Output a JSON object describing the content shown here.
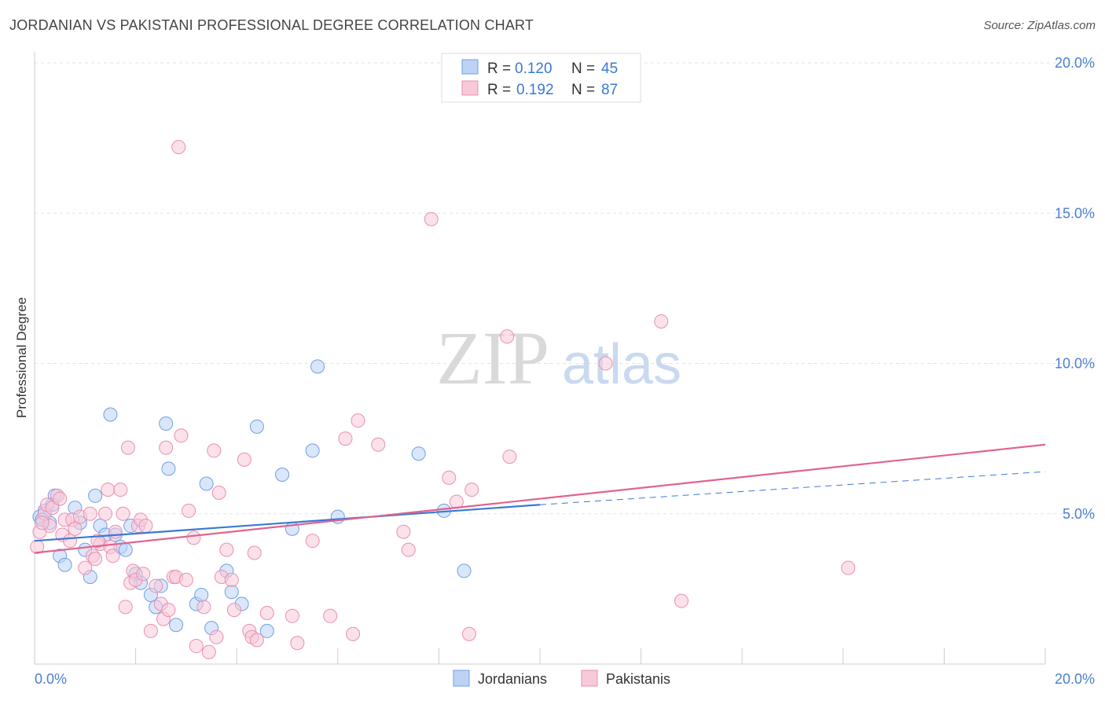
{
  "title": "JORDANIAN VS PAKISTANI PROFESSIONAL DEGREE CORRELATION CHART",
  "source": "Source: ZipAtlas.com",
  "watermark": {
    "zip": "ZIP",
    "atlas": "atlas"
  },
  "legend": {
    "r_label": "R =",
    "n_label": "N =",
    "rows": [
      {
        "r": "0.120",
        "n": "45",
        "color": "#6f9ee6",
        "fill": "#bcd3f5"
      },
      {
        "r": "0.192",
        "n": "87",
        "color": "#e98fb0",
        "fill": "#f8c9d9"
      }
    ]
  },
  "chart_data": {
    "type": "scatter",
    "title": "JORDANIAN VS PAKISTANI PROFESSIONAL DEGREE CORRELATION CHART",
    "xlabel": "",
    "ylabel": "Professional Degree",
    "xlim": [
      0,
      20
    ],
    "ylim": [
      0,
      20
    ],
    "x_tick_labels": [
      "0.0%",
      "20.0%"
    ],
    "y_ticks": [
      {
        "value": 5,
        "label": "5.0%"
      },
      {
        "value": 10,
        "label": "10.0%"
      },
      {
        "value": 15,
        "label": "15.0%"
      },
      {
        "value": 20,
        "label": "20.0%"
      }
    ],
    "grid": true,
    "series": [
      {
        "name": "Jordanians",
        "color": "#6f9ee6",
        "fill": "#bcd3f5",
        "trend": {
          "x0": 0,
          "y0": 4.1,
          "x1": 10,
          "y1": 5.3,
          "dash_to": 20,
          "dash_y": 6.4,
          "color": "#3b78d4"
        },
        "points": [
          [
            0.1,
            4.9
          ],
          [
            0.2,
            5.1
          ],
          [
            0.3,
            4.7
          ],
          [
            0.4,
            5.6
          ],
          [
            0.5,
            3.6
          ],
          [
            0.6,
            3.3
          ],
          [
            0.8,
            5.2
          ],
          [
            0.9,
            4.7
          ],
          [
            1.0,
            3.8
          ],
          [
            1.1,
            2.9
          ],
          [
            1.2,
            5.6
          ],
          [
            1.3,
            4.6
          ],
          [
            1.4,
            4.3
          ],
          [
            1.5,
            8.3
          ],
          [
            1.6,
            4.3
          ],
          [
            1.7,
            3.9
          ],
          [
            1.8,
            3.8
          ],
          [
            1.9,
            4.6
          ],
          [
            2.0,
            3.0
          ],
          [
            2.1,
            2.7
          ],
          [
            2.3,
            2.3
          ],
          [
            2.4,
            1.9
          ],
          [
            2.5,
            2.6
          ],
          [
            2.6,
            8.0
          ],
          [
            2.65,
            6.5
          ],
          [
            2.8,
            1.3
          ],
          [
            3.2,
            2.0
          ],
          [
            3.3,
            2.3
          ],
          [
            3.4,
            6.0
          ],
          [
            3.5,
            1.2
          ],
          [
            3.8,
            3.1
          ],
          [
            3.9,
            2.4
          ],
          [
            4.1,
            2.0
          ],
          [
            4.4,
            7.9
          ],
          [
            4.6,
            1.1
          ],
          [
            4.9,
            6.3
          ],
          [
            5.1,
            4.5
          ],
          [
            5.5,
            7.1
          ],
          [
            5.6,
            9.9
          ],
          [
            6.0,
            4.9
          ],
          [
            7.6,
            7.0
          ],
          [
            8.1,
            5.1
          ],
          [
            8.5,
            3.1
          ],
          [
            0.15,
            4.8
          ],
          [
            0.35,
            5.3
          ]
        ]
      },
      {
        "name": "Pakistanis",
        "color": "#e98fb0",
        "fill": "#f8c9d9",
        "trend": {
          "x0": 0,
          "y0": 3.7,
          "x1": 20,
          "y1": 7.3,
          "color": "#e0648f"
        },
        "points": [
          [
            0.05,
            3.9
          ],
          [
            0.1,
            4.4
          ],
          [
            0.2,
            5.0
          ],
          [
            0.25,
            5.3
          ],
          [
            0.3,
            4.6
          ],
          [
            0.35,
            5.2
          ],
          [
            0.45,
            5.6
          ],
          [
            0.55,
            4.3
          ],
          [
            0.6,
            4.8
          ],
          [
            0.7,
            4.1
          ],
          [
            0.75,
            4.8
          ],
          [
            0.8,
            4.5
          ],
          [
            0.9,
            4.9
          ],
          [
            1.0,
            3.2
          ],
          [
            1.1,
            5.0
          ],
          [
            1.15,
            3.6
          ],
          [
            1.2,
            3.5
          ],
          [
            1.3,
            4.0
          ],
          [
            1.4,
            5.0
          ],
          [
            1.45,
            5.8
          ],
          [
            1.5,
            3.9
          ],
          [
            1.55,
            3.6
          ],
          [
            1.6,
            4.4
          ],
          [
            1.7,
            5.8
          ],
          [
            1.75,
            5.0
          ],
          [
            1.8,
            1.9
          ],
          [
            1.85,
            7.2
          ],
          [
            1.9,
            2.7
          ],
          [
            1.95,
            3.1
          ],
          [
            2.0,
            2.8
          ],
          [
            2.05,
            4.6
          ],
          [
            2.1,
            4.8
          ],
          [
            2.2,
            4.6
          ],
          [
            2.3,
            1.1
          ],
          [
            2.4,
            2.6
          ],
          [
            2.5,
            2.0
          ],
          [
            2.55,
            1.5
          ],
          [
            2.6,
            7.2
          ],
          [
            2.65,
            1.8
          ],
          [
            2.75,
            2.9
          ],
          [
            2.8,
            2.9
          ],
          [
            2.85,
            17.2
          ],
          [
            2.9,
            7.6
          ],
          [
            3.0,
            2.8
          ],
          [
            3.05,
            5.1
          ],
          [
            3.15,
            4.2
          ],
          [
            3.2,
            0.6
          ],
          [
            3.35,
            1.9
          ],
          [
            3.45,
            0.4
          ],
          [
            3.55,
            7.1
          ],
          [
            3.6,
            0.9
          ],
          [
            3.65,
            5.7
          ],
          [
            3.7,
            2.9
          ],
          [
            3.8,
            3.8
          ],
          [
            3.9,
            2.8
          ],
          [
            3.95,
            1.8
          ],
          [
            4.15,
            6.8
          ],
          [
            4.25,
            1.1
          ],
          [
            4.3,
            0.9
          ],
          [
            4.35,
            3.7
          ],
          [
            4.4,
            0.8
          ],
          [
            4.6,
            1.7
          ],
          [
            5.1,
            1.6
          ],
          [
            5.2,
            0.7
          ],
          [
            5.5,
            4.1
          ],
          [
            5.85,
            1.6
          ],
          [
            6.15,
            7.5
          ],
          [
            6.3,
            1.0
          ],
          [
            6.4,
            8.1
          ],
          [
            6.8,
            7.3
          ],
          [
            7.3,
            4.4
          ],
          [
            7.4,
            3.8
          ],
          [
            7.85,
            14.8
          ],
          [
            8.2,
            6.2
          ],
          [
            8.35,
            5.4
          ],
          [
            8.6,
            1.0
          ],
          [
            8.65,
            5.8
          ],
          [
            9.35,
            10.9
          ],
          [
            9.4,
            6.9
          ],
          [
            11.3,
            10.0
          ],
          [
            12.4,
            11.4
          ],
          [
            12.8,
            2.1
          ],
          [
            16.1,
            3.2
          ],
          [
            0.15,
            4.7
          ],
          [
            0.5,
            5.5
          ],
          [
            1.25,
            4.1
          ],
          [
            2.15,
            3.0
          ]
        ]
      }
    ]
  }
}
